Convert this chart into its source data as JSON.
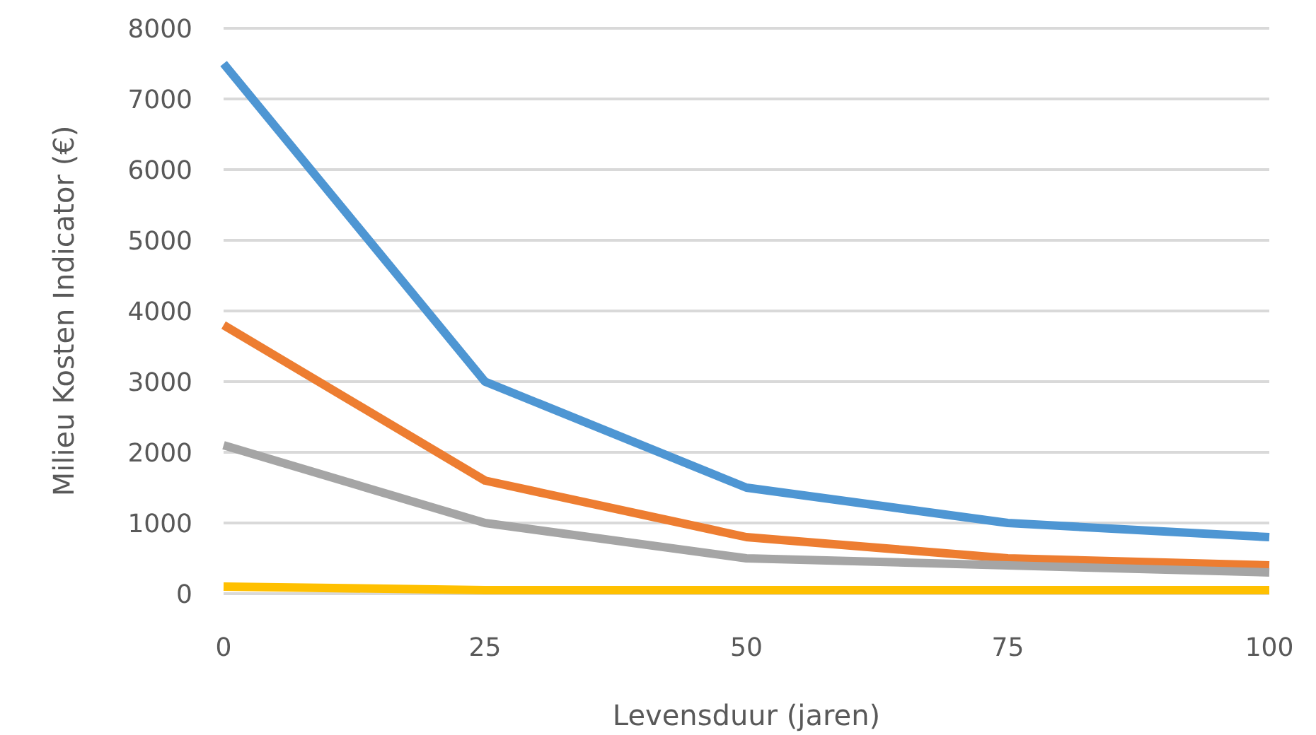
{
  "chart_data": {
    "type": "line",
    "xlabel": "Levensduur (jaren)",
    "ylabel": "Milieu Kosten Indicator (€)",
    "x": [
      0,
      25,
      50,
      75,
      100
    ],
    "xlim": [
      0,
      100
    ],
    "xticks": [
      0,
      25,
      50,
      75,
      100
    ],
    "ylim": [
      0,
      8000
    ],
    "yticks": [
      0,
      1000,
      2000,
      3000,
      4000,
      5000,
      6000,
      7000,
      8000
    ],
    "grid": "y",
    "marker": "none",
    "line_style": "solid",
    "series": [
      {
        "color": "#4e96d3",
        "values": [
          7500,
          3000,
          1500,
          1000,
          800
        ]
      },
      {
        "color": "#ed7d31",
        "values": [
          3800,
          1600,
          800,
          500,
          400
        ]
      },
      {
        "color": "#a5a5a5",
        "values": [
          2100,
          1000,
          500,
          400,
          300
        ]
      },
      {
        "color": "#ffc000",
        "values": [
          100,
          50,
          50,
          50,
          50
        ]
      }
    ]
  }
}
